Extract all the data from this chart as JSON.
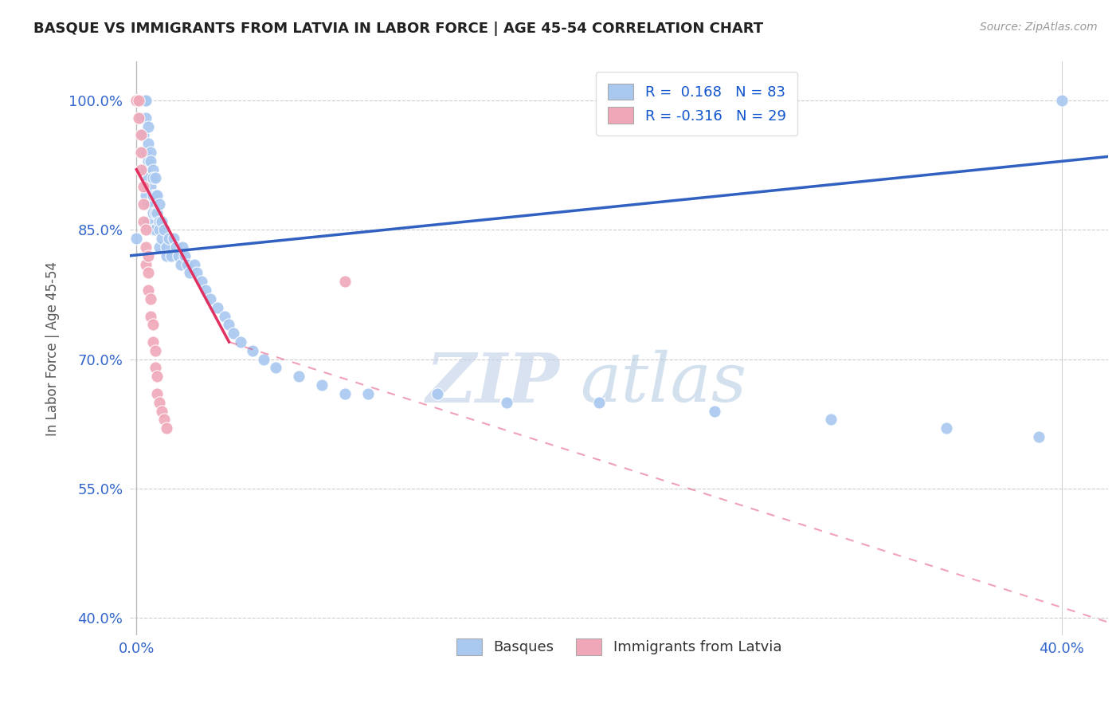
{
  "title": "BASQUE VS IMMIGRANTS FROM LATVIA IN LABOR FORCE | AGE 45-54 CORRELATION CHART",
  "source": "Source: ZipAtlas.com",
  "ylabel": "In Labor Force | Age 45-54",
  "xlim": [
    -0.003,
    0.42
  ],
  "ylim": [
    0.38,
    1.045
  ],
  "xtick_positions": [
    0.0,
    0.05,
    0.1,
    0.15,
    0.2,
    0.25,
    0.3,
    0.35,
    0.4
  ],
  "xticklabels": [
    "0.0%",
    "",
    "",
    "",
    "",
    "",
    "",
    "",
    "40.0%"
  ],
  "ytick_positions": [
    0.4,
    0.55,
    0.7,
    0.85,
    1.0
  ],
  "yticklabels": [
    "40.0%",
    "55.0%",
    "70.0%",
    "85.0%",
    "100.0%"
  ],
  "legend_r_blue": "0.168",
  "legend_n_blue": "83",
  "legend_r_pink": "-0.316",
  "legend_n_pink": "29",
  "blue_color": "#A8C8F0",
  "pink_color": "#F0A8B8",
  "trendline_blue": "#3060C0",
  "trendline_pink": "#E03060",
  "watermark_zip": "ZIP",
  "watermark_atlas": "atlas",
  "blue_scatter_x": [
    0.0,
    0.001,
    0.001,
    0.002,
    0.002,
    0.002,
    0.002,
    0.003,
    0.003,
    0.003,
    0.003,
    0.003,
    0.004,
    0.004,
    0.004,
    0.004,
    0.004,
    0.004,
    0.005,
    0.005,
    0.005,
    0.005,
    0.005,
    0.005,
    0.006,
    0.006,
    0.006,
    0.006,
    0.007,
    0.007,
    0.007,
    0.007,
    0.007,
    0.008,
    0.008,
    0.008,
    0.008,
    0.009,
    0.009,
    0.01,
    0.01,
    0.01,
    0.01,
    0.011,
    0.011,
    0.012,
    0.013,
    0.013,
    0.014,
    0.015,
    0.016,
    0.017,
    0.018,
    0.019,
    0.02,
    0.021,
    0.022,
    0.023,
    0.025,
    0.026,
    0.028,
    0.03,
    0.032,
    0.035,
    0.038,
    0.04,
    0.042,
    0.045,
    0.05,
    0.055,
    0.06,
    0.07,
    0.08,
    0.09,
    0.1,
    0.13,
    0.16,
    0.2,
    0.25,
    0.3,
    0.35,
    0.39,
    0.4
  ],
  "blue_scatter_y": [
    0.84,
    1.0,
    1.0,
    1.0,
    1.0,
    1.0,
    0.98,
    1.0,
    1.0,
    1.0,
    0.96,
    0.94,
    1.0,
    1.0,
    0.98,
    0.94,
    0.92,
    0.89,
    0.97,
    0.95,
    0.93,
    0.91,
    0.88,
    0.86,
    0.94,
    0.93,
    0.9,
    0.88,
    0.92,
    0.91,
    0.89,
    0.87,
    0.85,
    0.91,
    0.89,
    0.87,
    0.85,
    0.89,
    0.87,
    0.88,
    0.86,
    0.85,
    0.83,
    0.86,
    0.84,
    0.85,
    0.83,
    0.82,
    0.84,
    0.82,
    0.84,
    0.83,
    0.82,
    0.81,
    0.83,
    0.82,
    0.81,
    0.8,
    0.81,
    0.8,
    0.79,
    0.78,
    0.77,
    0.76,
    0.75,
    0.74,
    0.73,
    0.72,
    0.71,
    0.7,
    0.69,
    0.68,
    0.67,
    0.66,
    0.66,
    0.66,
    0.65,
    0.65,
    0.64,
    0.63,
    0.62,
    0.61,
    1.0
  ],
  "pink_scatter_x": [
    0.0,
    0.0,
    0.001,
    0.001,
    0.002,
    0.002,
    0.002,
    0.003,
    0.003,
    0.003,
    0.004,
    0.004,
    0.004,
    0.005,
    0.005,
    0.005,
    0.006,
    0.006,
    0.007,
    0.007,
    0.008,
    0.008,
    0.009,
    0.009,
    0.01,
    0.011,
    0.012,
    0.013,
    0.09
  ],
  "pink_scatter_y": [
    1.0,
    1.0,
    1.0,
    0.98,
    0.96,
    0.94,
    0.92,
    0.9,
    0.88,
    0.86,
    0.85,
    0.83,
    0.81,
    0.82,
    0.8,
    0.78,
    0.77,
    0.75,
    0.74,
    0.72,
    0.71,
    0.69,
    0.68,
    0.66,
    0.65,
    0.64,
    0.63,
    0.62,
    0.79
  ],
  "blue_trend_x0": -0.003,
  "blue_trend_x1": 0.42,
  "blue_trend_y0": 0.82,
  "blue_trend_y1": 0.935,
  "pink_trend_solid_x0": 0.0,
  "pink_trend_solid_x1": 0.04,
  "pink_trend_y0": 0.92,
  "pink_trend_y1": 0.72,
  "pink_trend_dash_x0": 0.04,
  "pink_trend_dash_x1": 0.42,
  "pink_trend_dash_y0": 0.72,
  "pink_trend_dash_y1": 0.395
}
